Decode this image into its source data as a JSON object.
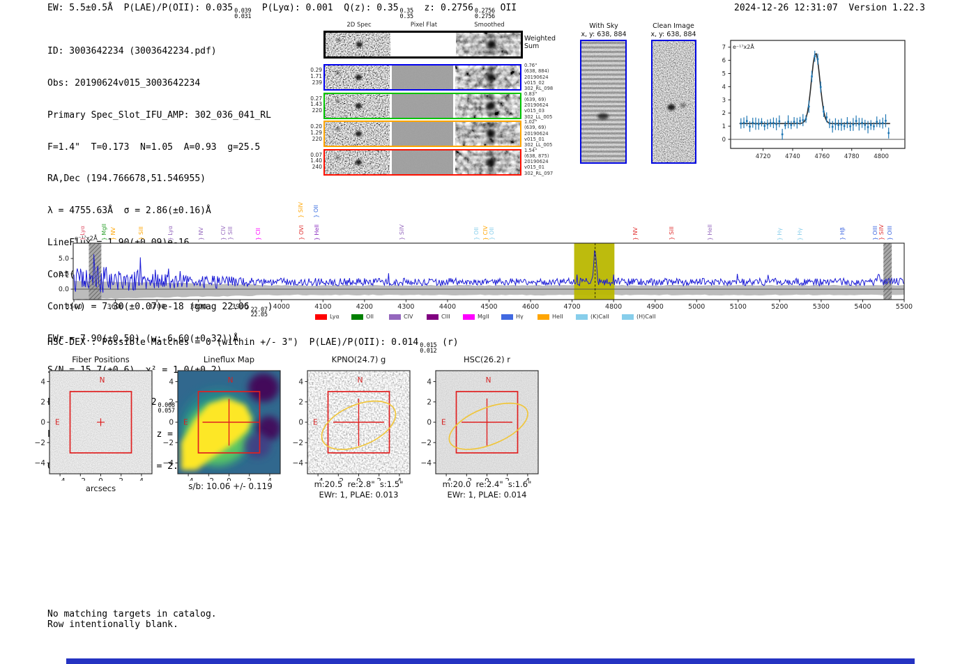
{
  "header": {
    "seg1": "EW: 5.5±0.5Å  P(LAE)/P(OII): 0.035",
    "plae_hi": "0.039",
    "plae_lo": "0.031",
    "seg2": "  P(Lyα): 0.001  Q(z): 0.35",
    "qz_hi": "0.35",
    "qz_lo": "0.35",
    "seg3": "  z: 0.2756",
    "z_hi": "0.2756",
    "z_lo": "0.2756",
    "seg4": " OII",
    "timestamp": "2024-12-26 12:31:07",
    "version": "Version 1.22.3"
  },
  "info": {
    "l1": "ID: 3003642234 (3003642234.pdf)",
    "l2": "Obs: 20190624v015_3003642234",
    "l3": "Primary Spec_Slot_IFU_AMP: 302_036_041_RL",
    "l4": "F=1.4\"  T=0.173  N=1.05  A=0.93  g=25.5",
    "l5": "RA,Dec (194.766678,51.546955)",
    "l6": "λ = 4755.63Å  σ = 2.86(±0.16)Å",
    "l7": "LineFlux = 1.90(±0.09)e-16",
    "l8": "Cont(n) = 6.10(±0.25)e-18",
    "contw_pre": "Cont(w) = 7.30(±0.07)e-18 (gmag 22.06",
    "contw_hi": "22.07",
    "contw_lo": "22.05",
    "contw_post": ")",
    "l10": "EWr = 7.90(±0.50) (w: 6.60(±0.32))Å",
    "l11": "S/N = 15.7(±0.6)  χ² = 1.0(±0.2)",
    "plae_pre": "P(LAE)/P(OII): 0.062",
    "plae_hi": "0.068",
    "plae_lo": "0.057",
    "plae_mid": " (w: 0.045",
    "plae_hi2": "0.048",
    "plae_lo2": "0.042",
    "plae_post": ")",
    "l13": "LyA z = 2.9119  OII z = 0.2757",
    "l14": "Q(0.00) Lyα(1216) z = 2.9119  EW r = 6.6Å"
  },
  "spec2d": {
    "col_headers": [
      "2D Spec",
      "Pixel Flat",
      "Smoothed"
    ],
    "weighted_sum": [
      "Weighted",
      "Sum"
    ],
    "rows": [
      {
        "color": "#0000ee",
        "left": [
          "0.29",
          "1.71",
          "239"
        ],
        "right": [
          "0.76\"",
          "(638, 884)",
          "20190624",
          "v015_02",
          "302_RL_098"
        ]
      },
      {
        "color": "#00c400",
        "left": [
          "0.27",
          "1.43",
          "220"
        ],
        "right": [
          "0.83\"",
          "(639, 69)",
          "20190624",
          "v015_03",
          "302_LL_005"
        ]
      },
      {
        "color": "#ffa500",
        "left": [
          "0.20",
          "1.29",
          "220"
        ],
        "right": [
          "1.02\"",
          "(639, 69)",
          "20190624",
          "v015_01",
          "302_LL_005"
        ]
      },
      {
        "color": "#ff1республ000",
        "left": [
          "0.07",
          "1.40",
          "240"
        ],
        "right": [
          "1.54\"",
          "(638, 875)",
          "20190624",
          "v015_01",
          "302_RL_097"
        ]
      }
    ]
  },
  "withsky": {
    "title": "With Sky",
    "xy": "x, y: 638, 884"
  },
  "clean": {
    "title": "Clean Image",
    "xy": "x, y: 638, 884"
  },
  "hscdex": {
    "pre": "HSC-DEX : Possible Matches = 0 (within +/- 3\")  P(LAE)/P(OII): 0.014",
    "hi": "0.015",
    "lo": "0.012",
    "post": " (r)"
  },
  "footer": {
    "line1": "No matching targets in catalog.",
    "line2": "Row intentionally blank."
  },
  "chart_data": [
    {
      "id": "line-fit",
      "type": "scatter+line",
      "annotation": "e⁻¹⁷x2Å",
      "xticks": [
        4720,
        4740,
        4760,
        4780,
        4800
      ],
      "yticks": [
        0,
        1,
        2,
        3,
        4,
        5,
        6,
        7
      ],
      "xlim": [
        4698,
        4816
      ],
      "ylim": [
        -0.7,
        7.5
      ],
      "baseline": 1.2,
      "peak": {
        "center": 4755.6,
        "sigma": 2.86,
        "amplitude": 5.35
      },
      "point_color": "#1f77b4",
      "fit_color": "#2b2b2b"
    },
    {
      "id": "full-spectrum",
      "type": "line",
      "annotation": "e⁻¹⁷x2Å",
      "xlim": [
        3500,
        5500
      ],
      "xticks": [
        3500,
        3600,
        3700,
        3800,
        3900,
        4000,
        4100,
        4200,
        4300,
        4400,
        4500,
        4600,
        4700,
        4800,
        4900,
        5000,
        5100,
        5200,
        5300,
        5400,
        5500
      ],
      "yticks": [
        0,
        2.5,
        5
      ],
      "baseline": 1.2,
      "peak": {
        "center": 4755.63,
        "sigma": 3.0,
        "amplitude": 5.35
      },
      "highlight_band": [
        4705,
        4802
      ],
      "masked_bands": [
        [
          3536,
          3566
        ],
        [
          5450,
          5470
        ]
      ],
      "line_color": "#1a1ad6",
      "noise_band_color": "#b5b5b5",
      "highlight_color": "#b9b700",
      "line_labels": [
        {
          "text": "Lyα",
          "wave": 3522,
          "color": "#e1556a"
        },
        {
          "text": "MgII",
          "wave": 3574,
          "color": "#2ca02c"
        },
        {
          "text": "NV",
          "wave": 3596,
          "color": "#ffa500"
        },
        {
          "text": "SiII",
          "wave": 3663,
          "color": "#ffa500"
        },
        {
          "text": "Lyα",
          "wave": 3733,
          "color": "#9467bd"
        },
        {
          "text": "NV",
          "wave": 3808,
          "color": "#9467bd"
        },
        {
          "text": "CIV",
          "wave": 3861,
          "color": "#9467bd"
        },
        {
          "text": "SiII",
          "wave": 3878,
          "color": "#9467bd"
        },
        {
          "text": "CII",
          "wave": 3945,
          "color": "#ff00ff"
        },
        {
          "text": "SiIV",
          "wave": 4048,
          "color": "#ffa500",
          "raised": true
        },
        {
          "text": "OVI",
          "wave": 4049,
          "color": "#e03030"
        },
        {
          "text": "OII",
          "wave": 4085,
          "color": "#3b6fe0",
          "raised": true
        },
        {
          "text": "HeII",
          "wave": 4086,
          "color": "#8c2fc0"
        },
        {
          "text": "SiIV",
          "wave": 4291,
          "color": "#9467bd"
        },
        {
          "text": "OII",
          "wave": 4470,
          "color": "#87ceeb"
        },
        {
          "text": "CIV",
          "wave": 4492,
          "color": "#ffa500"
        },
        {
          "text": "OII",
          "wave": 4508,
          "color": "#87ceeb"
        },
        {
          "text": "NV",
          "wave": 4854,
          "color": "#e03030"
        },
        {
          "text": "SiII",
          "wave": 4940,
          "color": "#e03030"
        },
        {
          "text": "HeII",
          "wave": 5034,
          "color": "#9467bd"
        },
        {
          "text": "Hγ",
          "wave": 5201,
          "color": "#87ceeb"
        },
        {
          "text": "Hγ",
          "wave": 5250,
          "color": "#87ceeb"
        },
        {
          "text": "Hβ",
          "wave": 5352,
          "color": "#4169e1"
        },
        {
          "text": "OIII",
          "wave": 5431,
          "color": "#4169e1"
        },
        {
          "text": "SiIV",
          "wave": 5446,
          "color": "#e03030"
        },
        {
          "text": "OIII",
          "wave": 5466,
          "color": "#4169e1"
        }
      ],
      "legend": [
        {
          "label": "Lyα",
          "color": "#ff0000"
        },
        {
          "label": "OII",
          "color": "#008000"
        },
        {
          "label": "CIV",
          "color": "#9467bd"
        },
        {
          "label": "CIII",
          "color": "#800080"
        },
        {
          "label": "MgII",
          "color": "#ff00ff"
        },
        {
          "label": "Hγ",
          "color": "#4169e1"
        },
        {
          "label": "HeII",
          "color": "#ffa500"
        },
        {
          "label": "(K)CaII",
          "color": "#87ceeb"
        },
        {
          "label": "(H)CaII",
          "color": "#87ceeb"
        }
      ]
    },
    {
      "id": "fiber-positions",
      "type": "image-cutout",
      "title": "Fiber Positions",
      "xlabel": "arcsecs",
      "ticks": [
        -4,
        -2,
        0,
        2,
        4
      ],
      "compass": {
        "n": "N",
        "e": "E"
      }
    },
    {
      "id": "lineflux-map",
      "type": "heatmap",
      "title": "Lineflux Map",
      "caption1": "s/b: 10.06 +/- 0.119",
      "ticks": [
        -4,
        -2,
        0,
        2,
        4
      ],
      "compass": {
        "n": "N",
        "e": "E"
      }
    },
    {
      "id": "kpno-g",
      "type": "image-cutout",
      "title": "KPNO(24.7) g",
      "caption1": "m:20.5  re:2.8\"  s:1.5\"",
      "caption2": "EWr: 1, PLAE: 0.013",
      "ticks": [
        -4,
        -2,
        0,
        2,
        4
      ],
      "compass": {
        "n": "N",
        "e": "E"
      }
    },
    {
      "id": "hsc-r",
      "type": "image-cutout",
      "title": "HSC(26.2) r",
      "caption1": "m:20.0  re:2.4\"  s:1.6\"",
      "caption2": "EWr: 1, PLAE: 0.014",
      "ticks": [
        -4,
        -2,
        0,
        2,
        4
      ],
      "compass": {
        "n": "N",
        "e": "E"
      }
    }
  ]
}
